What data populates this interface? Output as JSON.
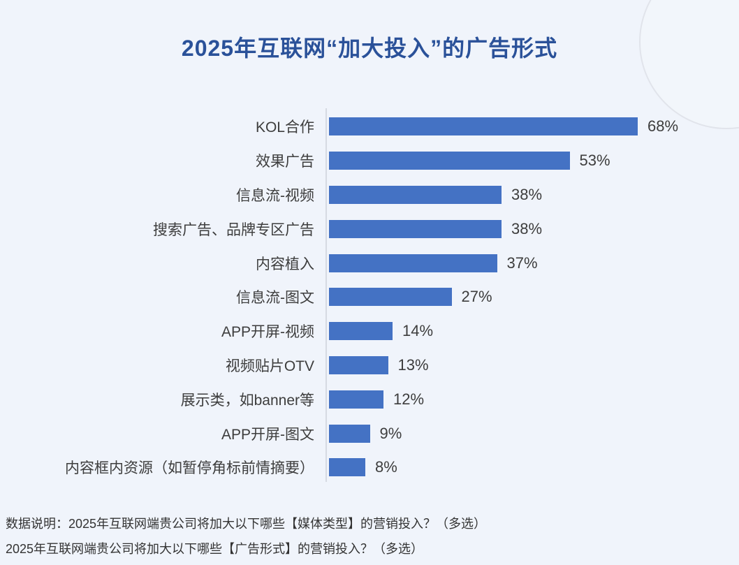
{
  "title": "2025年互联网“加大投入”的广告形式",
  "chart_data": {
    "type": "bar",
    "orientation": "horizontal",
    "title": "2025年互联网“加大投入”的广告形式",
    "categories": [
      "KOL合作",
      "效果广告",
      "信息流-视频",
      "搜索广告、品牌专区广告",
      "内容植入",
      "信息流-图文",
      "APP开屏-视频",
      "视频贴片OTV",
      "展示类，如banner等",
      "APP开屏-图文",
      "内容框内资源（如暂停角标前情摘要）"
    ],
    "values": [
      68,
      53,
      38,
      38,
      37,
      27,
      14,
      13,
      12,
      9,
      8
    ],
    "value_suffix": "%",
    "xlim": [
      0,
      100
    ],
    "grid": false,
    "legend": "none",
    "value_labels": "outside-end",
    "sorted": "descending"
  },
  "footnotes": [
    "数据说明：2025年互联网端贵公司将加大以下哪些【媒体类型】的营销投入？（多选）",
    "2025年互联网端贵公司将加大以下哪些【广告形式】的营销投入？（多选）"
  ],
  "colors": {
    "background": "#F0F4FB",
    "bar": "#4472C4",
    "title": "#2A5199",
    "label_text": "#3D3D3D",
    "footnote_text": "#333333",
    "axis_line": "#D6DAE2",
    "circle_border": "#E1E4EB"
  }
}
